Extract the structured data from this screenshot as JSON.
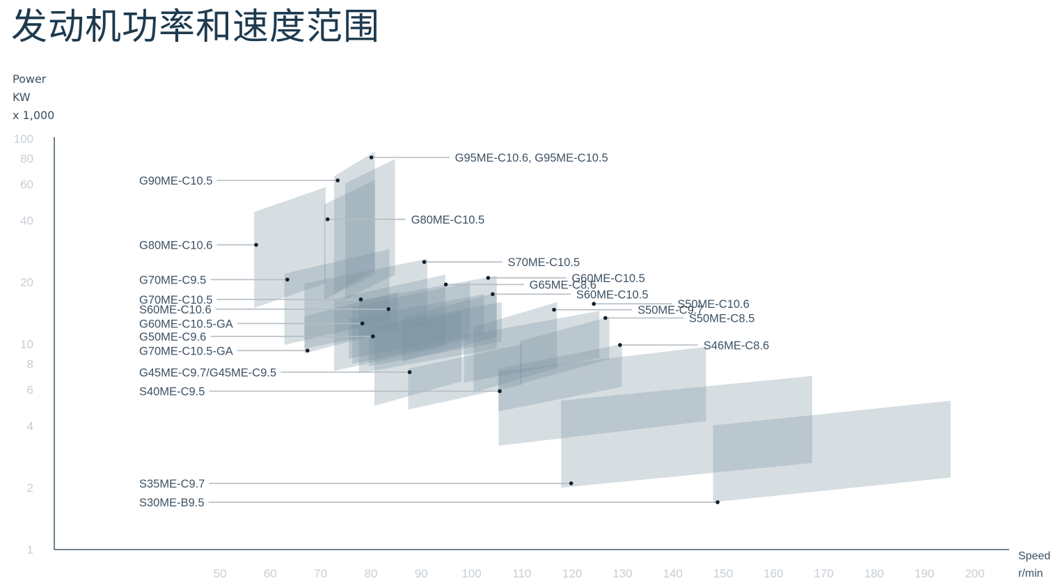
{
  "page": {
    "title": "发动机功率和速度范围"
  },
  "chart_data": {
    "type": "range-chart",
    "title": "发动机功率和速度范围",
    "ylabel": [
      "Power",
      "KW",
      "x 1,000"
    ],
    "xlabel": [
      "Speed",
      "r/min"
    ],
    "xscale": "linear",
    "yscale": "log",
    "xlim": [
      40,
      205
    ],
    "ylim": [
      1,
      100
    ],
    "xticks": [
      50,
      60,
      70,
      80,
      90,
      100,
      110,
      120,
      130,
      140,
      150,
      160,
      170,
      180,
      190,
      200
    ],
    "yticks": [
      1,
      2,
      4,
      6,
      8,
      10,
      20,
      40,
      60,
      80,
      100
    ],
    "colors": {
      "fill": "#7b939f",
      "text": "#3d5163",
      "axis": "#1d3a4f",
      "tick": "#c7ced4",
      "leader": "#b4bcc3"
    },
    "engines": [
      {
        "name": "G95ME-C10.6, G95ME-C10.5",
        "speed_min": 72.7,
        "speed_max": 80.8,
        "power_min": 17.5,
        "power_max": 86.5,
        "point": [
          80.1,
          81.0
        ],
        "label_side": "right"
      },
      {
        "name": "G90ME-C10.5",
        "speed_min": 74.9,
        "speed_max": 84.8,
        "power_min": 16.5,
        "power_max": 79.7,
        "point": [
          73.4,
          62.6
        ],
        "label_side": "left"
      },
      {
        "name": "G80ME-C10.5",
        "speed_min": 70.7,
        "speed_max": 80.8,
        "power_min": 16.5,
        "power_max": 63.0,
        "point": [
          71.4,
          40.5
        ],
        "label_side": "right"
      },
      {
        "name": "G80ME-C10.6",
        "speed_min": 56.8,
        "speed_max": 71.0,
        "power_min": 15.0,
        "power_max": 58.0,
        "point": [
          57.2,
          30.4
        ],
        "label_side": "left"
      },
      {
        "name": "G70ME-C9.5",
        "speed_min": 62.8,
        "speed_max": 83.7,
        "power_min": 9.9,
        "power_max": 29.0,
        "point": [
          63.4,
          20.6
        ],
        "label_side": "left"
      },
      {
        "name": "S70ME-C10.5",
        "speed_min": 66.8,
        "speed_max": 91.2,
        "power_min": 9.5,
        "power_max": 26.0,
        "point": [
          90.6,
          25.1
        ],
        "label_side": "right"
      },
      {
        "name": "G70ME-C10.5",
        "speed_min": 72.7,
        "speed_max": 94.8,
        "power_min": 7.4,
        "power_max": 21.8,
        "point": [
          78.0,
          16.5
        ],
        "label_side": "left"
      },
      {
        "name": "G60ME-C10.5",
        "speed_min": 77.6,
        "speed_max": 105.0,
        "power_min": 7.2,
        "power_max": 21.5,
        "point": [
          103.3,
          21.0
        ],
        "label_side": "right"
      },
      {
        "name": "G65ME-C8.6",
        "speed_min": 76.3,
        "speed_max": 99.7,
        "power_min": 8.0,
        "power_max": 20.0,
        "point": [
          94.9,
          19.5
        ],
        "label_side": "right"
      },
      {
        "name": "S60ME-C10.6",
        "speed_min": 75.6,
        "speed_max": 102.5,
        "power_min": 8.5,
        "power_max": 17.5,
        "point": [
          83.5,
          14.8
        ],
        "label_side": "left"
      },
      {
        "name": "S60ME-C10.5",
        "speed_min": 86.2,
        "speed_max": 105.0,
        "power_min": 8.2,
        "power_max": 17.8,
        "point": [
          104.2,
          17.5
        ],
        "label_side": "right"
      },
      {
        "name": "G60ME-C10.5-GA",
        "speed_min": 79.6,
        "speed_max": 106.0,
        "power_min": 7.8,
        "power_max": 16.0,
        "point": [
          78.3,
          12.6
        ],
        "label_side": "left"
      },
      {
        "name": "G50ME-C9.6",
        "speed_min": 80.7,
        "speed_max": 98.0,
        "power_min": 5.0,
        "power_max": 14.5,
        "point": [
          80.4,
          10.9
        ],
        "label_side": "left"
      },
      {
        "name": "S50ME-C10.6",
        "speed_min": 100.4,
        "speed_max": 117.0,
        "power_min": 5.8,
        "power_max": 16.0,
        "point": [
          124.3,
          15.7
        ],
        "label_side": "right"
      },
      {
        "name": "S50ME-C9.7",
        "speed_min": 98.5,
        "speed_max": 125.4,
        "power_min": 6.5,
        "power_max": 14.5,
        "point": [
          116.4,
          14.7
        ],
        "label_side": "right"
      },
      {
        "name": "S50ME-C8.5",
        "speed_min": 109.6,
        "speed_max": 127.4,
        "power_min": 6.4,
        "power_max": 13.6,
        "point": [
          126.6,
          13.4
        ],
        "label_side": "right"
      },
      {
        "name": "G70ME-C10.5-GA",
        "speed_min": 66.8,
        "speed_max": 85.4,
        "power_min": 9.0,
        "power_max": 18.0,
        "point": [
          67.4,
          9.3
        ],
        "label_side": "left"
      },
      {
        "name": "S46ME-C8.6",
        "speed_min": 105.3,
        "speed_max": 129.9,
        "power_min": 4.7,
        "power_max": 10.0,
        "point": [
          129.5,
          9.9
        ],
        "label_side": "right"
      },
      {
        "name": "G45ME-C9.7/G45ME-C9.5",
        "speed_min": 87.4,
        "speed_max": 110.0,
        "power_min": 4.8,
        "power_max": 10.0,
        "point": [
          87.7,
          7.3
        ],
        "label_side": "left"
      },
      {
        "name": "S40ME-C9.5",
        "speed_min": 105.4,
        "speed_max": 146.6,
        "power_min": 3.2,
        "power_max": 9.7,
        "point": [
          105.6,
          5.9
        ],
        "label_side": "left"
      },
      {
        "name": "S35ME-C9.7",
        "speed_min": 117.8,
        "speed_max": 167.7,
        "power_min": 2.0,
        "power_max": 7.0,
        "point": [
          119.8,
          2.1
        ],
        "label_side": "left"
      },
      {
        "name": "S30ME-B9.5",
        "speed_min": 148.0,
        "speed_max": 195.2,
        "power_min": 1.7,
        "power_max": 5.3,
        "point": [
          148.9,
          1.7
        ],
        "label_side": "left"
      }
    ]
  }
}
